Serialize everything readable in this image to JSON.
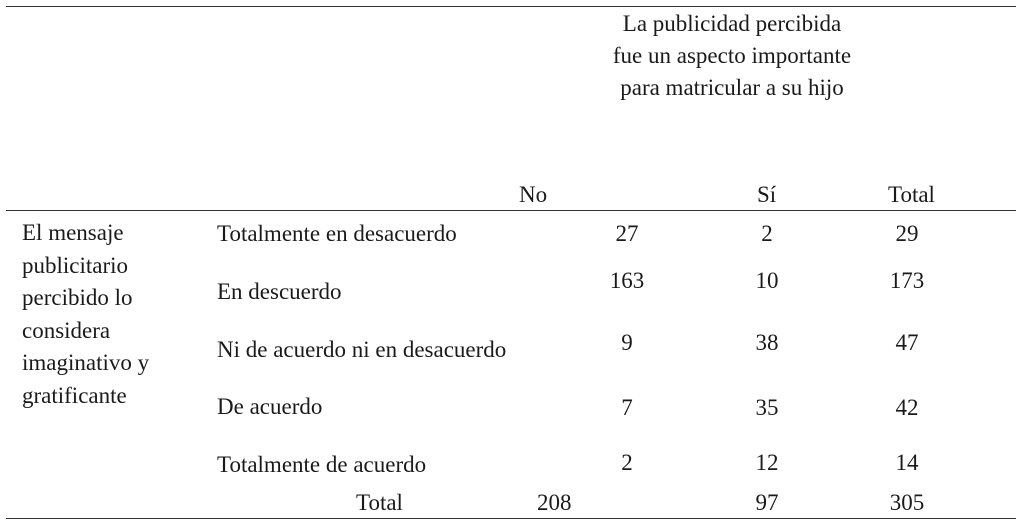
{
  "table": {
    "truncated_caption": "",
    "column_spanner": "La publicidad percibida fue un aspecto importante para matricular a su hijo",
    "column_headers": [
      "No",
      "Sí",
      "Total"
    ],
    "row_group_label": "El mensaje publicitario percibido lo considera imaginativo y gratificante",
    "rows": [
      {
        "label": "Totalmente en desacuerdo",
        "no": "27",
        "si": "2",
        "total": "29"
      },
      {
        "label": "En descuerdo",
        "no": "163",
        "si": "10",
        "total": "173"
      },
      {
        "label": "Ni de acuerdo ni en desacuerdo",
        "no": "9",
        "si": "38",
        "total": "47"
      },
      {
        "label": "De acuerdo",
        "no": "7",
        "si": "35",
        "total": "42"
      },
      {
        "label": "Totalmente de acuerdo",
        "no": "2",
        "si": "12",
        "total": "14"
      }
    ],
    "total_row": {
      "label": "Total",
      "no": "208",
      "si": "97",
      "total": "305"
    }
  }
}
